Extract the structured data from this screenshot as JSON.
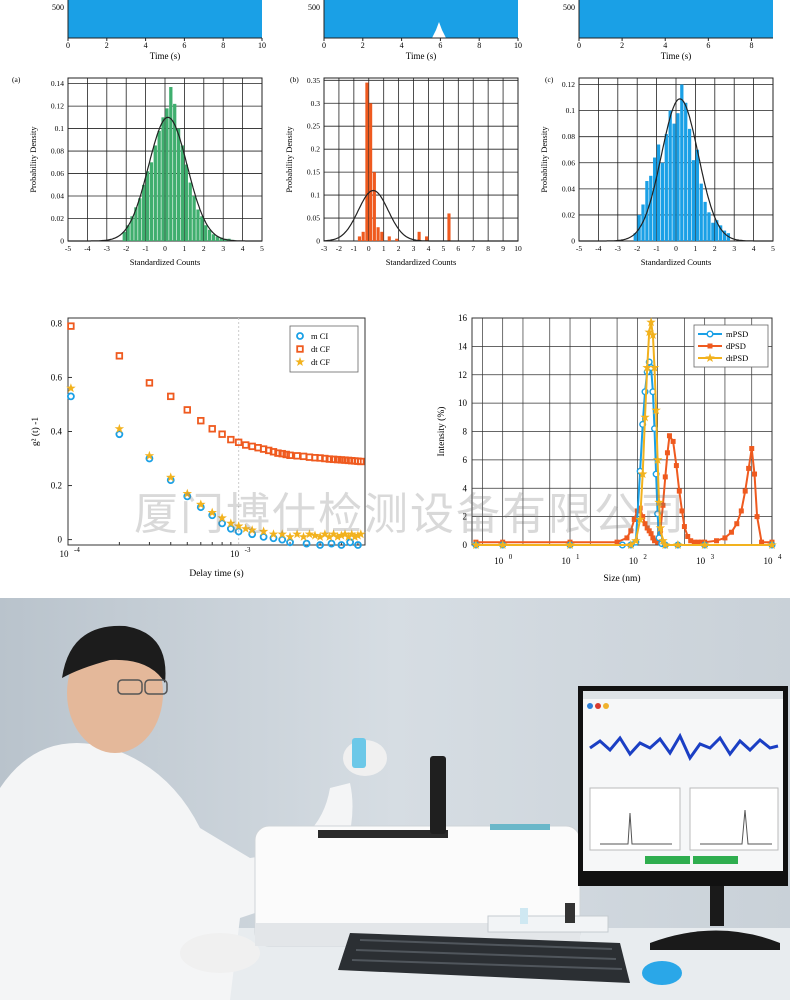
{
  "watermark": "厦门博仕检测设备有限公司",
  "colors": {
    "green": "#3fae6e",
    "orange": "#ef5a1f",
    "blue": "#1aa0e6",
    "gold": "#f2b21e",
    "fit": "#222222"
  },
  "chart_data": [
    {
      "type": "area",
      "id": "trace-a",
      "xlabel": "Time (s)",
      "x_ticks": [
        0,
        2,
        4,
        6,
        8,
        10
      ],
      "xlim": [
        0,
        10
      ],
      "y_ticks": [
        500
      ],
      "color": "#1aa0e6"
    },
    {
      "type": "area",
      "id": "trace-b",
      "xlabel": "Time (s)",
      "x_ticks": [
        0,
        2,
        4,
        6,
        8,
        10
      ],
      "xlim": [
        0,
        10
      ],
      "y_ticks": [
        500
      ],
      "color": "#1aa0e6"
    },
    {
      "type": "area",
      "id": "trace-c",
      "xlabel": "Time (s)",
      "x_ticks": [
        0,
        2,
        4,
        6,
        8
      ],
      "xlim": [
        0,
        9
      ],
      "y_ticks": [
        500
      ],
      "color": "#1aa0e6"
    },
    {
      "type": "bar",
      "id": "hist-a",
      "panel": "(a)",
      "xlabel": "Standardized Counts",
      "ylabel": "Probability Density",
      "xlim": [
        -5,
        5
      ],
      "ylim": [
        0,
        0.145
      ],
      "x_ticks": [
        -5,
        -4,
        -3,
        -2,
        -1,
        0,
        1,
        2,
        3,
        4,
        5
      ],
      "y_ticks": [
        0,
        0.02,
        0.04,
        0.06,
        0.08,
        0.1,
        0.12,
        0.14
      ],
      "y_tick_labels": [
        "0",
        "0.02",
        "0.04",
        "0.06",
        "0.08",
        "0.1",
        "0.12",
        "0.14"
      ],
      "bin_width": 0.2,
      "bins": [
        [
          -2.2,
          0.008
        ],
        [
          -2.0,
          0.014
        ],
        [
          -1.8,
          0.022
        ],
        [
          -1.6,
          0.03
        ],
        [
          -1.4,
          0.038
        ],
        [
          -1.2,
          0.05
        ],
        [
          -1.0,
          0.062
        ],
        [
          -0.8,
          0.07
        ],
        [
          -0.6,
          0.085
        ],
        [
          -0.4,
          0.098
        ],
        [
          -0.2,
          0.11
        ],
        [
          0.0,
          0.118
        ],
        [
          0.2,
          0.137
        ],
        [
          0.4,
          0.122
        ],
        [
          0.6,
          0.1
        ],
        [
          0.8,
          0.085
        ],
        [
          1.0,
          0.068
        ],
        [
          1.2,
          0.052
        ],
        [
          1.4,
          0.04
        ],
        [
          1.6,
          0.028
        ],
        [
          1.8,
          0.022
        ],
        [
          2.0,
          0.014
        ],
        [
          2.2,
          0.01
        ],
        [
          2.4,
          0.006
        ],
        [
          2.6,
          0.004
        ],
        [
          2.8,
          0.003
        ],
        [
          3.0,
          0.002
        ],
        [
          3.2,
          0.002
        ],
        [
          3.4,
          0.001
        ]
      ],
      "fit": {
        "mean": 0.15,
        "sd": 1.0,
        "peak": 0.11
      },
      "color": "#3fae6e"
    },
    {
      "type": "bar",
      "id": "hist-b",
      "panel": "(b)",
      "xlabel": "Standardized Counts",
      "ylabel": "Probability Density",
      "xlim": [
        -3,
        10
      ],
      "ylim": [
        0,
        0.355
      ],
      "x_ticks": [
        -3,
        -2,
        -1,
        0,
        1,
        2,
        3,
        4,
        5,
        6,
        7,
        8,
        9,
        10
      ],
      "y_ticks": [
        0,
        0.05,
        0.1,
        0.15,
        0.2,
        0.25,
        0.3,
        0.35
      ],
      "y_tick_labels": [
        "0",
        "0.05",
        "0.1",
        "0.15",
        "0.2",
        "0.25",
        "0.3",
        "0.35"
      ],
      "bin_width": 0.25,
      "bins": [
        [
          -0.75,
          0.01
        ],
        [
          -0.5,
          0.02
        ],
        [
          -0.25,
          0.345
        ],
        [
          0.0,
          0.3
        ],
        [
          0.25,
          0.15
        ],
        [
          0.5,
          0.03
        ],
        [
          0.75,
          0.02
        ],
        [
          1.25,
          0.01
        ],
        [
          1.75,
          0.005
        ],
        [
          3.25,
          0.02
        ],
        [
          3.75,
          0.01
        ],
        [
          5.25,
          0.06
        ]
      ],
      "fit": {
        "mean": 0.3,
        "sd": 1.0,
        "peak": 0.11
      },
      "color": "#ef5a1f"
    },
    {
      "type": "bar",
      "id": "hist-c",
      "panel": "(c)",
      "xlabel": "Standardized Counts",
      "ylabel": "Probability Density",
      "xlim": [
        -5,
        5
      ],
      "ylim": [
        0,
        0.125
      ],
      "x_ticks": [
        -5,
        -4,
        -3,
        -2,
        -1,
        0,
        1,
        2,
        3,
        4,
        5
      ],
      "y_ticks": [
        0,
        0.02,
        0.04,
        0.06,
        0.08,
        0.1,
        0.12
      ],
      "y_tick_labels": [
        "0",
        "0.02",
        "0.04",
        "0.06",
        "0.08",
        "0.1",
        "0.12"
      ],
      "bin_width": 0.2,
      "bins": [
        [
          -2.2,
          0.006
        ],
        [
          -2.0,
          0.02
        ],
        [
          -1.8,
          0.028
        ],
        [
          -1.6,
          0.046
        ],
        [
          -1.4,
          0.05
        ],
        [
          -1.2,
          0.064
        ],
        [
          -1.0,
          0.074
        ],
        [
          -0.8,
          0.06
        ],
        [
          -0.6,
          0.082
        ],
        [
          -0.4,
          0.1
        ],
        [
          -0.2,
          0.09
        ],
        [
          0.0,
          0.098
        ],
        [
          0.2,
          0.12
        ],
        [
          0.4,
          0.106
        ],
        [
          0.6,
          0.086
        ],
        [
          0.8,
          0.062
        ],
        [
          1.0,
          0.07
        ],
        [
          1.2,
          0.044
        ],
        [
          1.4,
          0.03
        ],
        [
          1.6,
          0.022
        ],
        [
          1.8,
          0.014
        ],
        [
          2.0,
          0.016
        ],
        [
          2.2,
          0.012
        ],
        [
          2.4,
          0.008
        ],
        [
          2.6,
          0.006
        ]
      ],
      "fit": {
        "mean": 0.2,
        "sd": 0.95,
        "peak": 0.109
      },
      "color": "#1aa0e6"
    },
    {
      "type": "scatter",
      "id": "correlation",
      "xlabel": "Delay time (s)",
      "ylabel": "g² (t) -1",
      "x_scale": "log",
      "xlim": [
        0.0001,
        0.0055
      ],
      "ylim": [
        -0.02,
        0.82
      ],
      "y_ticks": [
        0,
        0.2,
        0.4,
        0.6,
        0.8
      ],
      "y_tick_labels": [
        "0",
        "0.2",
        "0.4",
        "0.6",
        "0.8"
      ],
      "x_tick_labels": [
        {
          "base": "10",
          "exp": "-4",
          "value": 0.0001
        },
        {
          "base": "10",
          "exp": "-3",
          "value": 0.001
        }
      ],
      "legend": [
        "m CI",
        "dt CF",
        "dt CF"
      ],
      "legend_position": "top-right",
      "series": [
        {
          "marker": "circle",
          "color": "#1aa0e6",
          "x": [
            0.000104,
            0.0002,
            0.0003,
            0.0004,
            0.0005,
            0.0006,
            0.0007,
            0.0008,
            0.0009,
            0.001,
            0.0012,
            0.0014,
            0.0016,
            0.0018,
            0.002,
            0.0025,
            0.003,
            0.0035,
            0.004,
            0.0045,
            0.005
          ],
          "y": [
            0.53,
            0.39,
            0.3,
            0.22,
            0.16,
            0.12,
            0.09,
            0.06,
            0.04,
            0.03,
            0.02,
            0.01,
            0.005,
            0.0,
            -0.01,
            -0.015,
            -0.02,
            -0.015,
            -0.02,
            -0.01,
            -0.02
          ]
        },
        {
          "marker": "square",
          "color": "#ef5a1f",
          "x": [
            0.000104,
            0.0002,
            0.0003,
            0.0004,
            0.0005,
            0.0006,
            0.0007,
            0.0008,
            0.0009,
            0.001,
            0.0011,
            0.0012,
            0.0013,
            0.0014,
            0.0015,
            0.0016,
            0.0017,
            0.0018,
            0.0019,
            0.002,
            0.0022,
            0.0024,
            0.0026,
            0.0028,
            0.003,
            0.0032,
            0.0034,
            0.0036,
            0.0038,
            0.004,
            0.0042,
            0.0044,
            0.0046,
            0.0048,
            0.005,
            0.0052
          ],
          "y": [
            0.79,
            0.68,
            0.58,
            0.53,
            0.48,
            0.44,
            0.41,
            0.39,
            0.37,
            0.36,
            0.35,
            0.345,
            0.34,
            0.335,
            0.33,
            0.325,
            0.32,
            0.318,
            0.315,
            0.312,
            0.31,
            0.308,
            0.305,
            0.303,
            0.302,
            0.3,
            0.298,
            0.297,
            0.296,
            0.295,
            0.294,
            0.293,
            0.292,
            0.291,
            0.29,
            0.289
          ]
        },
        {
          "marker": "star",
          "color": "#f2b21e",
          "x": [
            0.000104,
            0.0002,
            0.0003,
            0.0004,
            0.0005,
            0.0006,
            0.0007,
            0.0008,
            0.0009,
            0.001,
            0.0011,
            0.0012,
            0.0014,
            0.0016,
            0.0018,
            0.002,
            0.0022,
            0.0024,
            0.0026,
            0.0028,
            0.003,
            0.0032,
            0.0034,
            0.0036,
            0.0038,
            0.004,
            0.0042,
            0.0044,
            0.0046,
            0.0048,
            0.005,
            0.0052
          ],
          "y": [
            0.56,
            0.41,
            0.31,
            0.23,
            0.17,
            0.13,
            0.1,
            0.08,
            0.06,
            0.05,
            0.04,
            0.035,
            0.03,
            0.02,
            0.02,
            0.01,
            0.02,
            0.01,
            0.02,
            0.015,
            0.01,
            0.02,
            0.01,
            0.02,
            0.01,
            0.015,
            0.02,
            0.01,
            0.02,
            0.01,
            0.015,
            0.02
          ]
        }
      ]
    },
    {
      "type": "line",
      "id": "size-distribution",
      "xlabel": "Size  (nm)",
      "ylabel": "Intensity (%)",
      "x_scale": "log",
      "xlim": [
        0.35,
        10000
      ],
      "ylim": [
        0,
        16
      ],
      "y_ticks": [
        0,
        2,
        4,
        6,
        8,
        10,
        12,
        14,
        16
      ],
      "x_tick_labels": [
        {
          "base": "10",
          "exp": "0",
          "value": 1
        },
        {
          "base": "10",
          "exp": "1",
          "value": 10
        },
        {
          "base": "10",
          "exp": "2",
          "value": 100
        },
        {
          "base": "10",
          "exp": "3",
          "value": 1000
        },
        {
          "base": "10",
          "exp": "4",
          "value": 10000
        }
      ],
      "legend": [
        "mPSD",
        "dPSD",
        "dtPSD"
      ],
      "legend_position": "top-right",
      "series": [
        {
          "marker": "circle",
          "color": "#1aa0e6",
          "x": [
            0.4,
            1,
            10,
            60,
            80,
            95,
            110,
            120,
            130,
            140,
            150,
            160,
            170,
            180,
            190,
            200,
            210,
            230,
            260,
            400,
            1000,
            10000
          ],
          "y": [
            0,
            0,
            0,
            0,
            0,
            0.2,
            5.2,
            8.5,
            10.8,
            12.2,
            12.9,
            12.5,
            10.8,
            8.2,
            5,
            2.2,
            0.5,
            0.1,
            0,
            0,
            0,
            0
          ]
        },
        {
          "marker": "square",
          "color": "#ef5a1f",
          "x": [
            0.4,
            1,
            10,
            50,
            70,
            80,
            90,
            100,
            110,
            120,
            130,
            140,
            150,
            160,
            170,
            180,
            200,
            220,
            240,
            260,
            280,
            300,
            340,
            380,
            420,
            460,
            500,
            560,
            620,
            700,
            800,
            900,
            1000,
            1500,
            2000,
            2500,
            3000,
            3500,
            4000,
            4500,
            5000,
            5500,
            6000,
            7000,
            10000
          ],
          "y": [
            0.2,
            0.2,
            0.2,
            0.2,
            0.5,
            1,
            1.8,
            2.4,
            2.6,
            2,
            1.5,
            1.2,
            1,
            0.8,
            0.5,
            0.3,
            0.2,
            1,
            2.8,
            4.8,
            6.5,
            7.7,
            7.3,
            5.6,
            3.8,
            2.4,
            1.3,
            0.6,
            0.3,
            0.2,
            0.2,
            0.2,
            0.2,
            0.3,
            0.5,
            0.9,
            1.5,
            2.4,
            3.8,
            5.4,
            6.8,
            5,
            2,
            0.2,
            0.2
          ]
        },
        {
          "marker": "star",
          "color": "#f2b21e",
          "x": [
            0.4,
            1,
            10,
            80,
            95,
            110,
            120,
            130,
            140,
            150,
            160,
            170,
            180,
            190,
            200,
            210,
            220,
            240,
            260,
            400,
            1000,
            10000
          ],
          "y": [
            0,
            0,
            0,
            0,
            0.3,
            1.8,
            5,
            9,
            12.5,
            15,
            15.7,
            14.8,
            12.5,
            9.5,
            6,
            3,
            1.2,
            0.3,
            0,
            0,
            0,
            0
          ]
        }
      ]
    }
  ]
}
